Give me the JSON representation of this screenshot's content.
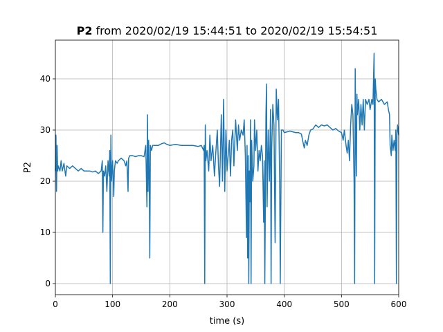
{
  "chart_data": {
    "type": "line",
    "title_series": "P2",
    "title": "from 2020/02/19 15:44:51 to 2020/02/19 15:54:51",
    "xlabel": "time (s)",
    "ylabel": "P2",
    "color": "#1f77b4",
    "grid": true,
    "xlim": [
      0,
      600
    ],
    "ylim": [
      -2.16,
      47.57
    ],
    "xticks": [
      0,
      100,
      200,
      300,
      400,
      500,
      600
    ],
    "yticks": [
      0,
      10,
      20,
      30,
      40
    ],
    "x": [
      0,
      1,
      2,
      3,
      4,
      5,
      8,
      10,
      12,
      15,
      18,
      20,
      25,
      30,
      35,
      40,
      45,
      50,
      55,
      60,
      65,
      70,
      75,
      80,
      82,
      83,
      84,
      86,
      88,
      90,
      92,
      94,
      95,
      96,
      97,
      98,
      100,
      102,
      103,
      105,
      108,
      110,
      115,
      120,
      123,
      125,
      127,
      128,
      130,
      135,
      140,
      145,
      150,
      155,
      158,
      160,
      161,
      162,
      163,
      164,
      165,
      166,
      168,
      170,
      175,
      180,
      185,
      190,
      195,
      200,
      210,
      220,
      230,
      240,
      250,
      255,
      259,
      260,
      261,
      262,
      263,
      265,
      268,
      270,
      272,
      275,
      278,
      280,
      283,
      285,
      287,
      290,
      292,
      294,
      296,
      298,
      300,
      302,
      304,
      306,
      308,
      310,
      312,
      315,
      318,
      320,
      322,
      325,
      328,
      330,
      332,
      334,
      335,
      336,
      337,
      338,
      339,
      340,
      341,
      342,
      343,
      345,
      347,
      348,
      350,
      352,
      354,
      356,
      358,
      360,
      362,
      364,
      365,
      366,
      368,
      369,
      370,
      372,
      374,
      376,
      377,
      378,
      380,
      382,
      384,
      386,
      388,
      390,
      392,
      393,
      395,
      398,
      400,
      410,
      420,
      425,
      430,
      432,
      435,
      437,
      440,
      443,
      446,
      450,
      455,
      460,
      465,
      470,
      475,
      480,
      485,
      490,
      495,
      500,
      503,
      505,
      508,
      510,
      512,
      514,
      516,
      518,
      520,
      522,
      523,
      524,
      525,
      526,
      527,
      528,
      530,
      532,
      534,
      536,
      538,
      540,
      542,
      545,
      548,
      550,
      553,
      555,
      557,
      558,
      559,
      560,
      562,
      565,
      570,
      575,
      580,
      582,
      584,
      585,
      587,
      588,
      590,
      592,
      594,
      595,
      596,
      597,
      598,
      600
    ],
    "values": [
      22,
      29,
      18,
      27,
      22,
      23,
      22,
      24,
      22,
      23.5,
      21,
      23,
      22.5,
      23,
      22.5,
      22,
      22.5,
      22,
      22,
      22,
      21.8,
      22,
      21.5,
      22,
      24,
      10,
      22,
      21,
      23,
      18,
      24,
      21,
      26,
      0,
      29,
      20,
      24,
      17,
      22,
      24,
      23.5,
      24,
      24.5,
      24,
      23,
      24,
      18,
      24.5,
      25,
      25,
      24.8,
      25,
      25,
      24.8,
      27,
      15,
      33,
      18,
      28,
      22,
      5,
      27,
      26,
      27,
      27,
      27,
      27.3,
      27.5,
      27.2,
      27,
      27.2,
      27,
      27,
      27,
      26.8,
      27,
      26,
      27,
      0,
      31,
      24,
      26,
      22,
      29,
      24,
      27,
      21,
      25,
      30,
      23,
      19,
      33,
      20,
      36,
      18,
      30,
      22,
      25,
      28,
      21,
      28,
      30,
      23,
      32,
      26,
      31,
      28,
      30,
      29,
      32,
      25,
      9,
      27,
      5,
      25,
      0,
      22,
      16,
      32,
      0,
      28,
      20,
      23,
      32,
      26,
      30,
      22,
      26,
      24,
      27,
      25,
      12,
      24,
      0,
      33,
      39,
      15,
      30,
      20,
      34,
      0,
      26,
      35,
      31,
      8,
      38,
      32,
      36,
      20,
      0,
      30,
      30,
      29.5,
      29.8,
      29.5,
      29.5,
      29.2,
      28,
      26.5,
      28,
      27,
      29,
      30,
      30.2,
      31,
      30.5,
      31,
      30.8,
      31,
      30.5,
      30,
      30.3,
      29.8,
      29.5,
      28,
      30,
      27,
      25.5,
      28,
      24,
      31,
      35,
      33,
      20,
      0,
      42,
      29,
      21,
      37,
      33,
      36,
      30,
      35,
      31,
      36,
      30,
      36,
      35,
      36,
      34,
      36,
      35,
      45,
      0,
      40,
      38,
      36,
      35.5,
      36,
      35,
      35.5,
      34,
      33,
      27,
      25,
      29,
      26,
      28,
      26,
      30,
      0,
      29,
      31,
      29
    ]
  }
}
